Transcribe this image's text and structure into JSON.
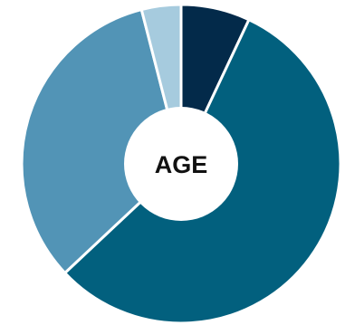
{
  "chart_data": {
    "type": "pie",
    "variant": "donut",
    "title": "",
    "center_label": "AGE",
    "categories": [
      "",
      "",
      "",
      ""
    ],
    "values": [
      7,
      56,
      33,
      4
    ],
    "colors": [
      "#032a4a",
      "#02607e",
      "#5294b6",
      "#a6cbde"
    ],
    "start_angle_deg": 0,
    "direction": "clockwise"
  }
}
